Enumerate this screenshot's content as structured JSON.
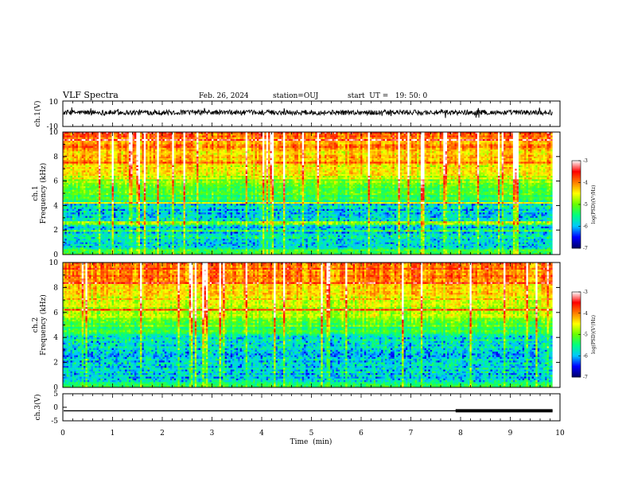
{
  "header": {
    "title": "VLF Spectra",
    "date": "Feb. 26, 2024",
    "station": "station=OUJ",
    "start": "start  UT =   19: 50: 0"
  },
  "chart_data": {
    "type": "heatmap",
    "x": {
      "label": "Time  (min)",
      "range": [
        0,
        10
      ],
      "ticks": [
        "0",
        "1",
        "2",
        "3",
        "4",
        "5",
        "6",
        "7",
        "8",
        "9",
        "10"
      ]
    },
    "waveform_ch1": {
      "ylabel": "ch.1(V)",
      "ylim": [
        -10,
        10
      ],
      "ticks": [
        "10",
        "-10"
      ],
      "data_end_min": 9.85,
      "baseline": 1.0,
      "amplitude": 2.0
    },
    "spectrogram_ch1": {
      "ylabel": "ch.1\nFrequency  (kHz)",
      "ylim": [
        0,
        10
      ],
      "yticks": [
        "0",
        "2",
        "4",
        "6",
        "8",
        "10"
      ],
      "colorbar": {
        "label": "log(PSD)(V²/Hz)",
        "range": [
          -7,
          -3
        ],
        "ticks": [
          "-3",
          "-4",
          "-5",
          "-6",
          "-7"
        ]
      },
      "data_end_min": 9.85
    },
    "spectrogram_ch2": {
      "ylabel": "ch.2\nFrequency  (kHz)",
      "ylim": [
        0,
        10
      ],
      "yticks": [
        "0",
        "2",
        "4",
        "6",
        "8",
        "10"
      ],
      "colorbar": {
        "label": "log(PSD)(V²/Hz)",
        "range": [
          -7,
          -3
        ],
        "ticks": [
          "-3",
          "-4",
          "-5",
          "-6",
          "-7"
        ]
      },
      "data_end_min": 9.85
    },
    "waveform_ch3": {
      "ylabel": "ch.3(V)",
      "ylim": [
        -5,
        5
      ],
      "ticks": [
        "5",
        "0",
        "-5"
      ],
      "level": -1.3,
      "data_end_min": 9.85,
      "thick_from_min": 7.9
    },
    "colormap": [
      "#000066",
      "#0000ff",
      "#00c8ff",
      "#00ff80",
      "#66ff00",
      "#ffff00",
      "#ff8000",
      "#ff0000",
      "#ffffff"
    ]
  }
}
